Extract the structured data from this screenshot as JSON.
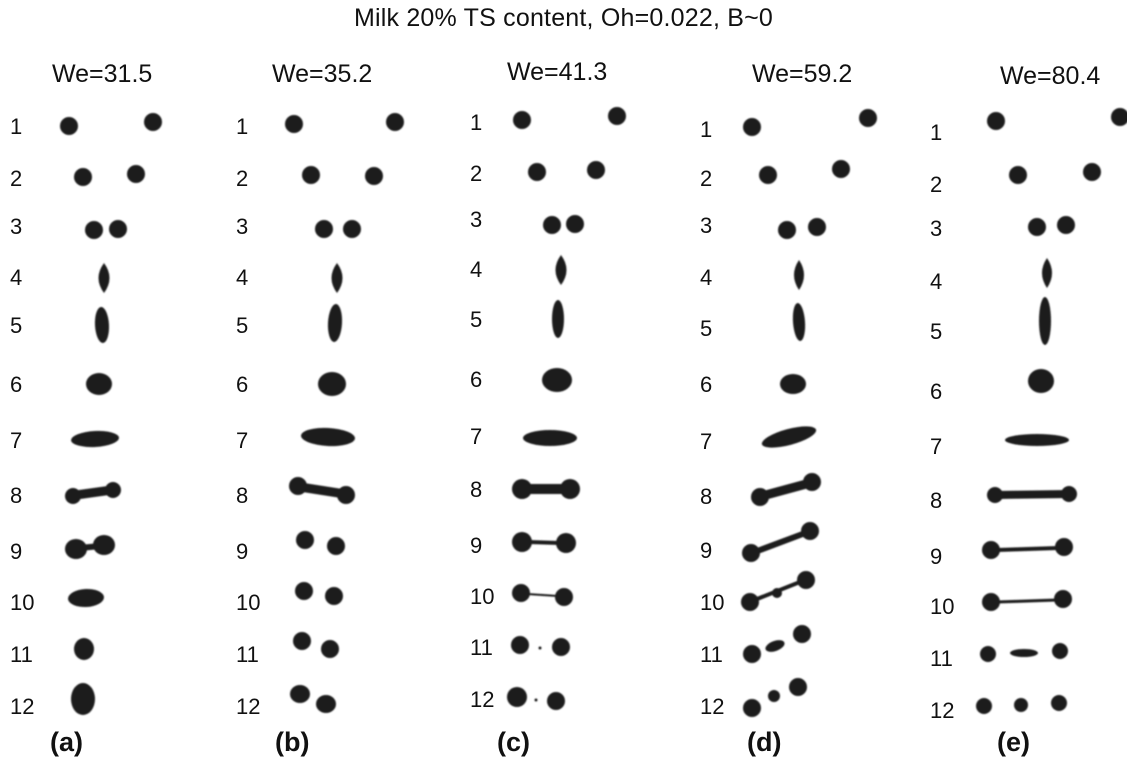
{
  "title": "Milk 20% TS content, Oh=0.022, B~0",
  "colors": {
    "droplet": "#1c1c1c",
    "background": "#ffffff"
  },
  "panels": [
    {
      "we": "We=31.5",
      "label": "(a)",
      "frames": [
        "1",
        "2",
        "3",
        "4",
        "5",
        "6",
        "7",
        "8",
        "9",
        "10",
        "11",
        "12"
      ]
    },
    {
      "we": "We=35.2",
      "label": "(b)",
      "frames": [
        "1",
        "2",
        "3",
        "4",
        "5",
        "6",
        "7",
        "8",
        "9",
        "10",
        "11",
        "12"
      ]
    },
    {
      "we": "We=41.3",
      "label": "(c)",
      "frames": [
        "1",
        "2",
        "3",
        "4",
        "5",
        "6",
        "7",
        "8",
        "9",
        "10",
        "11",
        "12"
      ]
    },
    {
      "we": "We=59.2",
      "label": "(d)",
      "frames": [
        "1",
        "2",
        "3",
        "4",
        "5",
        "6",
        "7",
        "8",
        "9",
        "10",
        "11",
        "12"
      ]
    },
    {
      "we": "We=80.4",
      "label": "(e)",
      "frames": [
        "1",
        "2",
        "3",
        "4",
        "5",
        "6",
        "7",
        "8",
        "9",
        "10",
        "11",
        "12"
      ]
    }
  ]
}
